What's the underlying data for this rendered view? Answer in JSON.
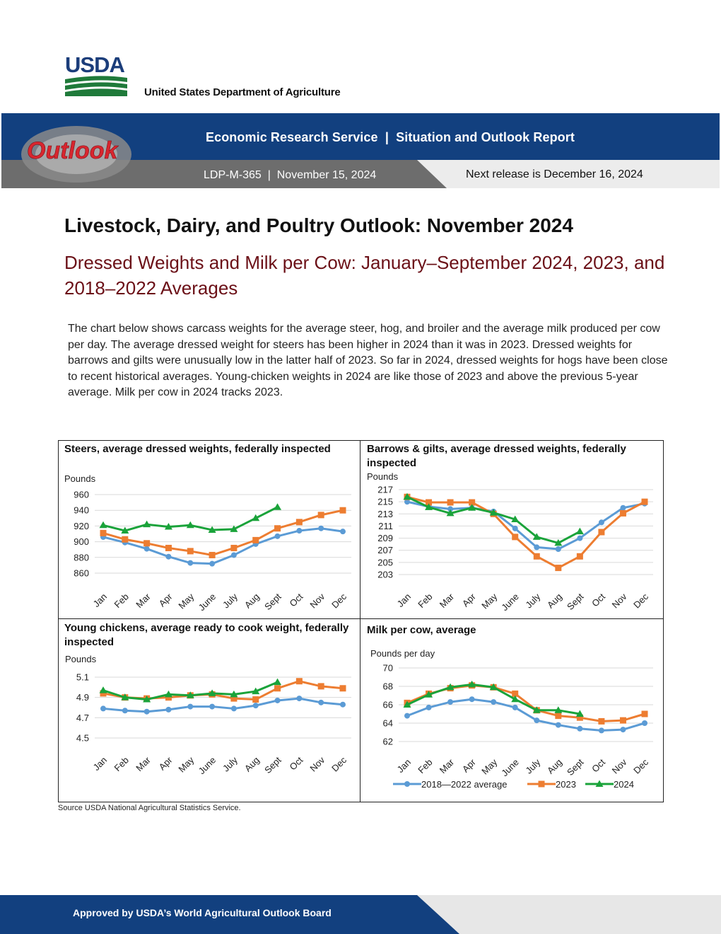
{
  "header": {
    "logo_letters": "USDA",
    "department": "United States Department of Agriculture",
    "outlook_logo": "Outlook",
    "service_line": "Economic Research Service  |  Situation and Outlook Report",
    "report_line": "LDP-M-365  |  November 15, 2024",
    "next_release": "Next release is December 16, 2024"
  },
  "report": {
    "title": "Livestock, Dairy, and Poultry Outlook: November 2024",
    "subtitle": "Dressed Weights and Milk per Cow: January–September 2024, 2023, and 2018–2022 Averages",
    "intro": "The chart below shows carcass weights for the average steer, hog, and broiler and the average milk produced per cow per day. The average dressed weight for steers has been higher in 2024 than it was in 2023. Dressed weights for barrows and gilts were unusually low in the latter half of 2023. So far in 2024, dressed weights for hogs have been close to recent historical averages. Young-chicken weights in 2024 are like those of 2023 and above the previous 5-year average. Milk per cow in 2024 tracks 2023."
  },
  "colors": {
    "avg": "#5b9bd5",
    "y2023": "#ed7d31",
    "y2024": "#1aa33a",
    "usda_blue": "#12407f",
    "subtitle": "#6b1017"
  },
  "legend": [
    "2018—2022 average",
    "2023",
    "2024"
  ],
  "chart_data": [
    {
      "type": "line",
      "title": "Steers, average dressed weights, federally inspected",
      "ylabel": "Pounds",
      "categories": [
        "Jan",
        "Feb",
        "Mar",
        "Apr",
        "May",
        "June",
        "July",
        "Aug",
        "Sept",
        "Oct",
        "Nov",
        "Dec"
      ],
      "ylim": [
        860,
        960
      ],
      "yticks": [
        860,
        880,
        900,
        920,
        940,
        960
      ],
      "grid": true,
      "series": [
        {
          "name": "2018—2022 average",
          "values": [
            906,
            899,
            891,
            881,
            873,
            872,
            883,
            897,
            907,
            914,
            917,
            913
          ]
        },
        {
          "name": "2023",
          "values": [
            911,
            903,
            898,
            892,
            888,
            883,
            892,
            902,
            917,
            925,
            934,
            940
          ]
        },
        {
          "name": "2024",
          "values": [
            921,
            914,
            922,
            919,
            921,
            915,
            916,
            930,
            944,
            null,
            null,
            null
          ]
        }
      ]
    },
    {
      "type": "line",
      "title": "Barrows & gilts, average dressed weights, federally inspected",
      "ylabel": "Pounds",
      "categories": [
        "Jan",
        "Feb",
        "Mar",
        "Apr",
        "May",
        "June",
        "July",
        "Aug",
        "Sept",
        "Oct",
        "Nov",
        "Dec"
      ],
      "ylim": [
        203,
        217
      ],
      "yticks": [
        203,
        205,
        207,
        209,
        211,
        213,
        215,
        217
      ],
      "grid": true,
      "series": [
        {
          "name": "2018—2022 average",
          "values": [
            215,
            214.2,
            213.8,
            214,
            213.4,
            210.6,
            207.5,
            207.2,
            209,
            211.6,
            214,
            214.7
          ]
        },
        {
          "name": "2023",
          "values": [
            215.8,
            214.9,
            214.9,
            214.9,
            213,
            209.2,
            206,
            204.1,
            206,
            210,
            213.1,
            215
          ]
        },
        {
          "name": "2024",
          "values": [
            215.8,
            214.1,
            213.1,
            214,
            213.2,
            212.1,
            209.2,
            208.2,
            210.1,
            null,
            null,
            null
          ]
        }
      ]
    },
    {
      "type": "line",
      "title": "Young chickens, average ready to cook weight, federally inspected",
      "ylabel": "Pounds",
      "categories": [
        "Jan",
        "Feb",
        "Mar",
        "Apr",
        "May",
        "June",
        "July",
        "Aug",
        "Sept",
        "Oct",
        "Nov",
        "Dec"
      ],
      "ylim": [
        4.5,
        5.1
      ],
      "yticks": [
        4.5,
        4.7,
        4.9,
        5.1
      ],
      "grid": true,
      "series": [
        {
          "name": "2018—2022 average",
          "values": [
            4.79,
            4.77,
            4.76,
            4.78,
            4.81,
            4.81,
            4.79,
            4.82,
            4.87,
            4.89,
            4.85,
            4.83
          ]
        },
        {
          "name": "2023",
          "values": [
            4.94,
            4.9,
            4.89,
            4.9,
            4.92,
            4.93,
            4.89,
            4.88,
            4.99,
            5.06,
            5.01,
            4.99
          ]
        },
        {
          "name": "2024",
          "values": [
            4.97,
            4.9,
            4.88,
            4.93,
            4.92,
            4.94,
            4.93,
            4.96,
            5.05,
            null,
            null,
            null
          ]
        }
      ]
    },
    {
      "type": "line",
      "title": "Milk per cow, average",
      "ylabel": "Pounds per day",
      "categories": [
        "Jan",
        "Feb",
        "Mar",
        "Apr",
        "May",
        "June",
        "July",
        "Aug",
        "Sept",
        "Oct",
        "Nov",
        "Dec"
      ],
      "ylim": [
        62,
        70
      ],
      "yticks": [
        62,
        64,
        66,
        68,
        70
      ],
      "grid": true,
      "legend": "bottom",
      "series": [
        {
          "name": "2018—2022 average",
          "values": [
            64.8,
            65.7,
            66.3,
            66.6,
            66.3,
            65.7,
            64.3,
            63.8,
            63.4,
            63.2,
            63.3,
            64
          ]
        },
        {
          "name": "2023",
          "values": [
            66.2,
            67.2,
            67.8,
            68.1,
            67.9,
            67.2,
            65.4,
            64.8,
            64.6,
            64.2,
            64.3,
            65
          ]
        },
        {
          "name": "2024",
          "values": [
            66,
            67.1,
            67.9,
            68.2,
            67.9,
            66.6,
            65.4,
            65.4,
            65,
            null,
            null,
            null
          ]
        }
      ]
    }
  ],
  "source": "Source USDA National Agricultural Statistics Service.",
  "footer": {
    "text": "Approved by USDA’s World Agricultural Outlook Board"
  }
}
